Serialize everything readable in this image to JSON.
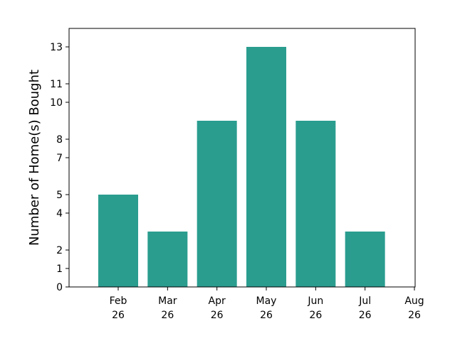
{
  "chart_data": {
    "type": "bar",
    "title": "",
    "xlabel": "",
    "ylabel": "Number of Home(s) Bought",
    "categories": [
      "Feb 26",
      "Mar 26",
      "Apr 26",
      "May 26",
      "Jun 26",
      "Jul 26"
    ],
    "values": [
      5,
      3,
      9,
      13,
      9,
      3
    ],
    "x_tick_labels": [
      [
        "Feb",
        "26"
      ],
      [
        "Mar",
        "26"
      ],
      [
        "Apr",
        "26"
      ],
      [
        "May",
        "26"
      ],
      [
        "Jun",
        "26"
      ],
      [
        "Jul",
        "26"
      ],
      [
        "Aug",
        "26"
      ]
    ],
    "y_ticks": [
      0,
      1,
      2,
      4,
      5,
      7,
      8,
      10,
      11,
      13
    ],
    "ylim": [
      0,
      14.0
    ],
    "grid": false,
    "legend": "none",
    "bar_color": "#2a9d8f",
    "axis_color": "#000000"
  }
}
